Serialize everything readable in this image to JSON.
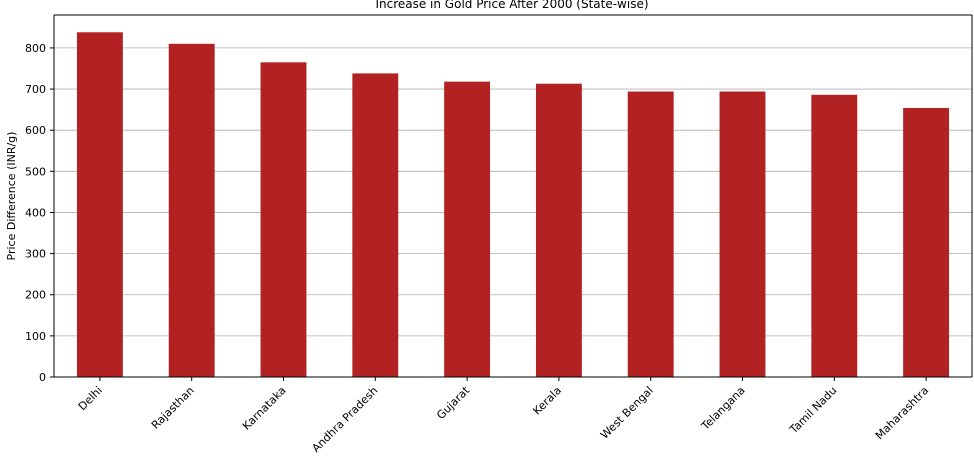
{
  "chart_data": {
    "type": "bar",
    "title": "Increase in Gold Price After 2000 (State-wise)",
    "xlabel": "",
    "ylabel": "Price Difference (INR/g)",
    "categories": [
      "Delhi",
      "Rajasthan",
      "Karnataka",
      "Andhra Pradesh",
      "Gujarat",
      "Kerala",
      "West Bengal",
      "Telangana",
      "Tamil Nadu",
      "Maharashtra"
    ],
    "values": [
      838,
      810,
      765,
      738,
      718,
      713,
      694,
      694,
      686,
      654
    ],
    "ylim": [
      0,
      880
    ],
    "yticks": [
      0,
      100,
      200,
      300,
      400,
      500,
      600,
      700,
      800
    ],
    "grid": "y-axis",
    "legend": "none",
    "bar_color": "#b22222",
    "grid_color": "#b0b0b0"
  }
}
